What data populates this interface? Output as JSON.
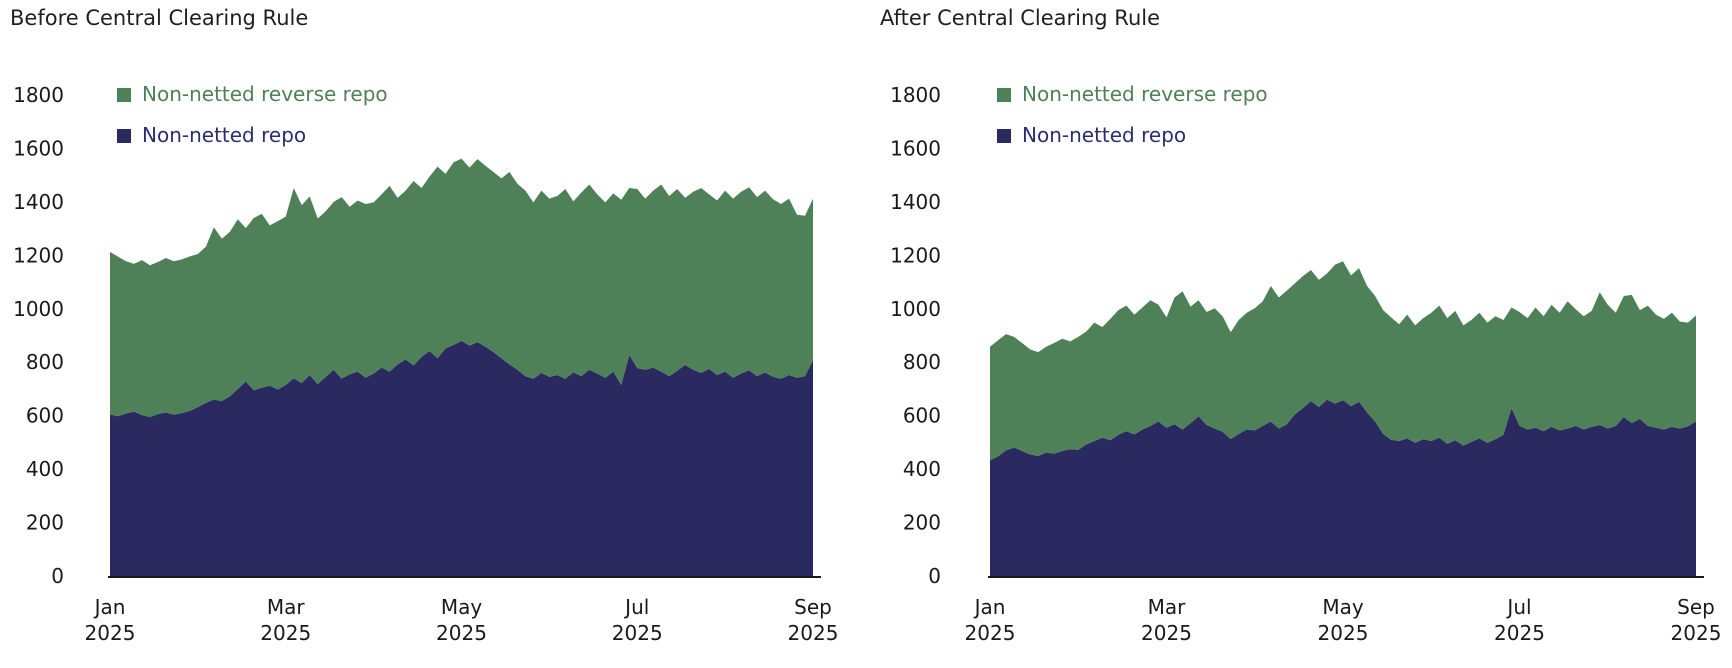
{
  "page": {
    "background": "#ffffff",
    "axis_color": "#1a1a1a"
  },
  "chart_data": [
    {
      "type": "area",
      "stacked": true,
      "title": "Before Central Clearing Rule",
      "legend_position": "top-left-inside",
      "grid": false,
      "ylim": [
        0,
        1800
      ],
      "y_ticks": [
        "1800",
        "1600",
        "1400",
        "1200",
        "1000",
        "800",
        "600",
        "400",
        "200",
        "0"
      ],
      "y_tick_values": [
        1800,
        1600,
        1400,
        1200,
        1000,
        800,
        600,
        400,
        200,
        0
      ],
      "x_ticks": [
        {
          "month": "Jan",
          "year": "2025"
        },
        {
          "month": "Mar",
          "year": "2025"
        },
        {
          "month": "May",
          "year": "2025"
        },
        {
          "month": "Jul",
          "year": "2025"
        },
        {
          "month": "Sep",
          "year": "2025"
        }
      ],
      "series": [
        {
          "name": "Non-netted reverse repo",
          "color": "#4E8158",
          "label_color": "#4E8158",
          "values": [
            608,
            597,
            570,
            553,
            580,
            568,
            569,
            578,
            574,
            575,
            578,
            573,
            584,
            645,
            607,
            616,
            635,
            574,
            645,
            650,
            600,
            630,
            630,
            712,
            666,
            668,
            620,
            620,
            628,
            680,
            627,
            640,
            650,
            640,
            648,
            695,
            623,
            632,
            690,
            632,
            653,
            717,
            653,
            683,
            682,
            666,
            685,
            677,
            674,
            673,
            720,
            696,
            694,
            660,
            682,
            667,
            670,
            710,
            640,
            687,
            693,
            670,
            656,
            667,
            693,
            625,
            670,
            640,
            662,
            700,
            674,
            680,
            625,
            666,
            692,
            653,
            653,
            677,
            670,
            680,
            685,
            670,
            680,
            665,
            654,
            660,
            610,
            600,
            604
          ]
        },
        {
          "name": "Non-netted repo",
          "color": "#2A2A60",
          "label_color": "#2C2C74",
          "values": [
            605,
            598,
            608,
            615,
            602,
            595,
            606,
            612,
            604,
            610,
            618,
            632,
            648,
            660,
            655,
            672,
            700,
            728,
            695,
            705,
            712,
            698,
            715,
            740,
            722,
            752,
            718,
            745,
            772,
            738,
            755,
            765,
            742,
            758,
            780,
            765,
            792,
            810,
            788,
            820,
            842,
            815,
            852,
            865,
            880,
            862,
            875,
            858,
            838,
            815,
            792,
            772,
            748,
            738,
            760,
            745,
            752,
            738,
            762,
            748,
            772,
            758,
            742,
            765,
            715,
            827,
            778,
            772,
            780,
            765,
            748,
            768,
            790,
            772,
            760,
            775,
            752,
            765,
            742,
            758,
            770,
            748,
            762,
            745,
            738,
            752,
            742,
            748,
            808
          ]
        }
      ]
    },
    {
      "type": "area",
      "stacked": true,
      "title": "After Central Clearing Rule",
      "legend_position": "top-left-inside",
      "grid": false,
      "ylim": [
        0,
        1800
      ],
      "y_ticks": [
        "1800",
        "1600",
        "1400",
        "1200",
        "1000",
        "800",
        "600",
        "400",
        "200",
        "0"
      ],
      "y_tick_values": [
        1800,
        1600,
        1400,
        1200,
        1000,
        800,
        600,
        400,
        200,
        0
      ],
      "x_ticks": [
        {
          "month": "Jan",
          "year": "2025"
        },
        {
          "month": "Mar",
          "year": "2025"
        },
        {
          "month": "May",
          "year": "2025"
        },
        {
          "month": "Jul",
          "year": "2025"
        },
        {
          "month": "Sep",
          "year": "2025"
        }
      ],
      "series": [
        {
          "name": "Non-netted reverse repo",
          "color": "#4E8158",
          "label_color": "#4E8158",
          "values": [
            426,
            434,
            435,
            414,
            404,
            393,
            389,
            396,
            414,
            420,
            403,
            423,
            423,
            443,
            414,
            454,
            467,
            470,
            448,
            457,
            470,
            437,
            413,
            474,
            517,
            436,
            434,
            423,
            450,
            432,
            400,
            426,
            437,
            457,
            466,
            507,
            490,
            500,
            490,
            494,
            490,
            476,
            472,
            520,
            520,
            490,
            500,
            473,
            470,
            463,
            458,
            437,
            463,
            440,
            453,
            480,
            494,
            470,
            484,
            450,
            456,
            470,
            450,
            460,
            430,
            377,
            426,
            417,
            450,
            430,
            457,
            440,
            476,
            436,
            424,
            434,
            497,
            463,
            423,
            453,
            480,
            407,
            450,
            423,
            414,
            427,
            400,
            388,
            397
          ]
        },
        {
          "name": "Non-netted repo",
          "color": "#2A2A60",
          "label_color": "#2C2C74",
          "values": [
            432,
            448,
            470,
            481,
            468,
            455,
            449,
            462,
            458,
            468,
            475,
            472,
            492,
            505,
            518,
            508,
            528,
            542,
            530,
            548,
            562,
            578,
            555,
            568,
            548,
            572,
            598,
            565,
            552,
            540,
            512,
            532,
            548,
            545,
            562,
            578,
            552,
            568,
            605,
            628,
            655,
            632,
            660,
            645,
            658,
            635,
            652,
            612,
            578,
            532,
            510,
            505,
            515,
            498,
            512,
            505,
            518,
            495,
            508,
            488,
            502,
            515,
            498,
            512,
            528,
            628,
            562,
            548,
            555,
            542,
            558,
            545,
            552,
            562,
            548,
            558,
            565,
            552,
            562,
            595,
            572,
            588,
            562,
            555,
            548,
            558,
            552,
            560,
            578
          ]
        }
      ]
    }
  ]
}
